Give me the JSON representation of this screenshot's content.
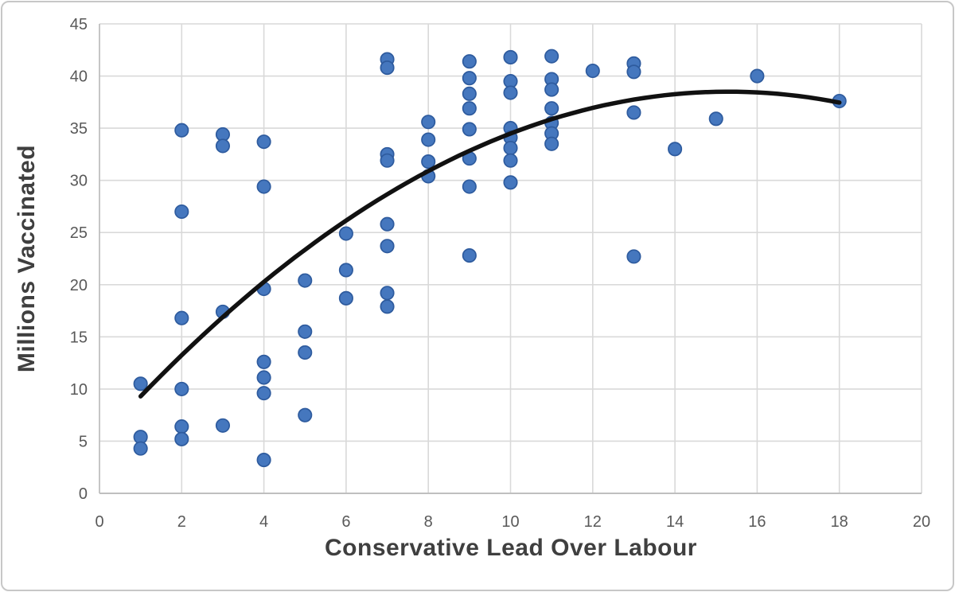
{
  "chart_data": {
    "type": "scatter",
    "title": "",
    "xlabel": "Conservative Lead Over Labour",
    "ylabel": "Millions Vaccinated",
    "xlim": [
      0,
      20
    ],
    "ylim": [
      0,
      45
    ],
    "x_ticks": [
      0,
      2,
      4,
      6,
      8,
      10,
      12,
      14,
      16,
      18,
      20
    ],
    "y_ticks": [
      0,
      5,
      10,
      15,
      20,
      25,
      30,
      35,
      40,
      45
    ],
    "grid": true,
    "legend": "none",
    "points": [
      [
        1,
        10.5
      ],
      [
        1,
        5.4
      ],
      [
        1,
        4.3
      ],
      [
        2,
        34.8
      ],
      [
        2,
        27.0
      ],
      [
        2,
        16.8
      ],
      [
        2,
        10.0
      ],
      [
        2,
        6.4
      ],
      [
        2,
        5.2
      ],
      [
        3,
        34.4
      ],
      [
        3,
        33.3
      ],
      [
        3,
        17.4
      ],
      [
        3,
        6.5
      ],
      [
        4,
        33.7
      ],
      [
        4,
        29.4
      ],
      [
        4,
        19.6
      ],
      [
        4,
        12.6
      ],
      [
        4,
        11.1
      ],
      [
        4,
        9.6
      ],
      [
        4,
        3.2
      ],
      [
        5,
        20.4
      ],
      [
        5,
        15.5
      ],
      [
        5,
        13.5
      ],
      [
        5,
        7.5
      ],
      [
        6,
        24.9
      ],
      [
        6,
        21.4
      ],
      [
        6,
        18.7
      ],
      [
        7,
        41.6
      ],
      [
        7,
        40.8
      ],
      [
        7,
        32.5
      ],
      [
        7,
        31.9
      ],
      [
        7,
        25.8
      ],
      [
        7,
        23.7
      ],
      [
        7,
        19.2
      ],
      [
        7,
        17.9
      ],
      [
        8,
        35.6
      ],
      [
        8,
        33.9
      ],
      [
        8,
        31.8
      ],
      [
        8,
        30.4
      ],
      [
        9,
        41.4
      ],
      [
        9,
        39.8
      ],
      [
        9,
        38.3
      ],
      [
        9,
        36.9
      ],
      [
        9,
        34.9
      ],
      [
        9,
        32.1
      ],
      [
        9,
        29.4
      ],
      [
        9,
        22.8
      ],
      [
        10,
        41.8
      ],
      [
        10,
        39.5
      ],
      [
        10,
        38.4
      ],
      [
        10,
        35.0
      ],
      [
        10,
        34.1
      ],
      [
        10,
        33.1
      ],
      [
        10,
        31.9
      ],
      [
        10,
        29.8
      ],
      [
        11,
        41.9
      ],
      [
        11,
        39.7
      ],
      [
        11,
        38.7
      ],
      [
        11,
        36.9
      ],
      [
        11,
        35.5
      ],
      [
        11,
        34.5
      ],
      [
        11,
        33.5
      ],
      [
        12,
        40.5
      ],
      [
        13,
        41.2
      ],
      [
        13,
        40.4
      ],
      [
        13,
        36.5
      ],
      [
        13,
        22.7
      ],
      [
        14,
        33.0
      ],
      [
        15,
        35.9
      ],
      [
        16,
        40.0
      ],
      [
        18,
        37.6
      ]
    ],
    "trendline": {
      "type": "polynomial",
      "order": 2,
      "vertex_x": 15.3,
      "vertex_y": 38.5,
      "a": -0.1428,
      "x_start": 1,
      "x_end": 18
    },
    "colors": {
      "point_fill": "#4577BE",
      "point_stroke": "#2E5B9E",
      "trendline": "#111111",
      "gridline": "#D9D9D9",
      "axis_line": "#BFBFBF",
      "tick_label": "#595959",
      "axis_title": "#3F3F3F"
    }
  }
}
